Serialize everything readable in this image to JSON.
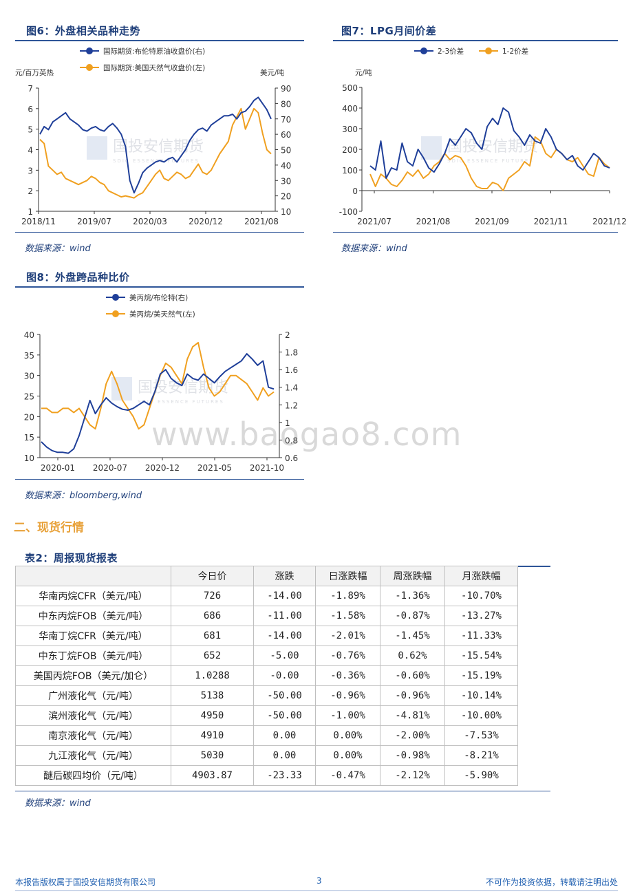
{
  "fig6": {
    "title": "图6：外盘相关品种走势",
    "source": "数据来源：wind",
    "chart_data": {
      "type": "line",
      "title": "图6：外盘相关品种走势",
      "left_unit": "元/百万英热",
      "right_unit": "美元/吨",
      "left_ticks": [
        "1",
        "2",
        "3",
        "4",
        "5",
        "6",
        "7"
      ],
      "right_ticks": [
        "10",
        "20",
        "30",
        "40",
        "50",
        "60",
        "70",
        "80",
        "90"
      ],
      "x_ticks": [
        "2018/11",
        "2019/07",
        "2020/03",
        "2020/12",
        "2021/08"
      ],
      "ylim_left": [
        1,
        7
      ],
      "ylim_right": [
        10,
        90
      ],
      "series": [
        {
          "name": "国际期货:布伦特原油收盘价(右)",
          "axis": "right",
          "color": "#1f3f99",
          "values": [
            60,
            65,
            63,
            68,
            70,
            72,
            74,
            70,
            68,
            66,
            63,
            62,
            64,
            65,
            63,
            62,
            65,
            67,
            64,
            60,
            52,
            30,
            22,
            28,
            35,
            38,
            40,
            42,
            43,
            42,
            44,
            45,
            42,
            46,
            50,
            56,
            60,
            63,
            64,
            62,
            66,
            68,
            70,
            72,
            72,
            73,
            70,
            74,
            75,
            78,
            82,
            84,
            80,
            76,
            70
          ]
        },
        {
          "name": "国际期货:美国天然气收盘价(左)",
          "axis": "left",
          "color": "#f0a020",
          "values": [
            4.5,
            4.3,
            3.2,
            3.0,
            2.8,
            2.9,
            2.6,
            2.5,
            2.4,
            2.3,
            2.4,
            2.5,
            2.7,
            2.6,
            2.4,
            2.3,
            2.0,
            1.9,
            1.8,
            1.7,
            1.75,
            1.7,
            1.65,
            1.8,
            1.9,
            2.2,
            2.5,
            2.8,
            3.0,
            2.6,
            2.5,
            2.7,
            2.9,
            2.8,
            2.6,
            2.7,
            3.0,
            3.3,
            2.9,
            2.8,
            3.0,
            3.4,
            3.8,
            4.1,
            4.4,
            5.2,
            5.6,
            6.0,
            5.0,
            5.5,
            6.0,
            5.8,
            4.8,
            4.0,
            3.8
          ]
        }
      ]
    }
  },
  "fig7": {
    "title": "图7：LPG月间价差",
    "source": "数据来源：wind",
    "chart_data": {
      "type": "line",
      "title": "图7：LPG月间价差",
      "y_unit": "元/吨",
      "y_ticks": [
        "-100",
        "0",
        "100",
        "200",
        "300",
        "400",
        "500"
      ],
      "x_ticks": [
        "2021/07",
        "2021/08",
        "2021/09",
        "2021/11",
        "2021/12"
      ],
      "ylim": [
        -100,
        500
      ],
      "series": [
        {
          "name": "2-3价差",
          "color": "#1f3f99",
          "values": [
            120,
            100,
            240,
            60,
            110,
            100,
            230,
            140,
            120,
            200,
            160,
            110,
            90,
            130,
            180,
            250,
            220,
            260,
            300,
            280,
            230,
            200,
            310,
            350,
            320,
            400,
            380,
            290,
            260,
            220,
            270,
            240,
            230,
            300,
            260,
            200,
            180,
            150,
            170,
            120,
            100,
            140,
            180,
            160,
            120,
            110
          ]
        },
        {
          "name": "1-2价差",
          "color": "#f0a020",
          "values": [
            80,
            20,
            80,
            60,
            30,
            20,
            50,
            90,
            70,
            100,
            60,
            80,
            120,
            140,
            180,
            150,
            170,
            160,
            120,
            60,
            20,
            10,
            10,
            40,
            30,
            0,
            60,
            80,
            100,
            140,
            120,
            260,
            240,
            180,
            160,
            200,
            180,
            150,
            140,
            160,
            120,
            80,
            70,
            160,
            130,
            110
          ]
        }
      ]
    }
  },
  "fig8": {
    "title": "图8：外盘跨品种比价",
    "source": "数据来源：bloomberg,wind",
    "chart_data": {
      "type": "line",
      "title": "图8：外盘跨品种比价",
      "left_ticks": [
        "10",
        "15",
        "20",
        "25",
        "30",
        "35",
        "40"
      ],
      "right_ticks": [
        "0.6",
        "0.8",
        "1",
        "1.2",
        "1.4",
        "1.6",
        "1.8",
        "2"
      ],
      "x_ticks": [
        "2020-01",
        "2020-07",
        "2020-12",
        "2021-05",
        "2021-10"
      ],
      "ylim_left": [
        10,
        40
      ],
      "ylim_right": [
        0.6,
        2.0
      ],
      "series": [
        {
          "name": "美丙烷/布伦特(右)",
          "axis": "right",
          "color": "#1f3f99",
          "values": [
            0.78,
            0.72,
            0.68,
            0.66,
            0.66,
            0.65,
            0.7,
            0.85,
            1.05,
            1.25,
            1.1,
            1.2,
            1.28,
            1.22,
            1.18,
            1.15,
            1.14,
            1.16,
            1.2,
            1.24,
            1.2,
            1.35,
            1.55,
            1.6,
            1.5,
            1.45,
            1.42,
            1.55,
            1.5,
            1.48,
            1.55,
            1.5,
            1.45,
            1.52,
            1.58,
            1.62,
            1.66,
            1.7,
            1.78,
            1.72,
            1.65,
            1.7,
            1.4,
            1.38
          ]
        },
        {
          "name": "美丙烷/美天然气(左)",
          "axis": "left",
          "color": "#f0a020",
          "values": [
            22,
            22,
            21,
            21,
            22,
            22,
            21,
            22,
            20,
            18,
            17,
            22,
            28,
            31,
            28,
            24,
            22,
            20,
            17,
            18,
            22,
            26,
            30,
            33,
            32,
            30,
            28,
            34,
            37,
            38,
            32,
            27,
            25,
            26,
            28,
            30,
            30,
            29,
            28,
            26,
            24,
            27,
            25,
            26
          ]
        }
      ]
    }
  },
  "watermark": {
    "company_cn": "国投安信期货",
    "company_en": "SDIC ESSENCE FUTURES",
    "site": "www.baogao8.com"
  },
  "section": {
    "title": "二、现货行情"
  },
  "table": {
    "title": "表2：周报现货报表",
    "source": "数据来源：wind",
    "headers": [
      "",
      "今日价",
      "涨跌",
      "日涨跌幅",
      "周涨跌幅",
      "月涨跌幅"
    ],
    "rows": [
      [
        "华南丙烷CFR（美元/吨）",
        "726",
        "-14.00",
        "-1.89%",
        "-1.36%",
        "-10.70%"
      ],
      [
        "中东丙烷FOB（美元/吨）",
        "686",
        "-11.00",
        "-1.58%",
        "-0.87%",
        "-13.27%"
      ],
      [
        "华南丁烷CFR（美元/吨）",
        "681",
        "-14.00",
        "-2.01%",
        "-1.45%",
        "-11.33%"
      ],
      [
        "中东丁烷FOB（美元/吨）",
        "652",
        "-5.00",
        "-0.76%",
        "0.62%",
        "-15.54%"
      ],
      [
        "美国丙烷FOB（美元/加仑）",
        "1.0288",
        "-0.00",
        "-0.36%",
        "-0.60%",
        "-15.19%"
      ],
      [
        "广州液化气（元/吨）",
        "5138",
        "-50.00",
        "-0.96%",
        "-0.96%",
        "-10.14%"
      ],
      [
        "滨州液化气（元/吨）",
        "4950",
        "-50.00",
        "-1.00%",
        "-4.81%",
        "-10.00%"
      ],
      [
        "南京液化气（元/吨）",
        "4910",
        "0.00",
        "0.00%",
        "-2.00%",
        "-7.53%"
      ],
      [
        "九江液化气（元/吨）",
        "5030",
        "0.00",
        "0.00%",
        "-0.98%",
        "-8.21%"
      ],
      [
        "醚后碳四均价（元/吨）",
        "4903.87",
        "-23.33",
        "-0.47%",
        "-2.12%",
        "-5.90%"
      ]
    ]
  },
  "footer": {
    "left": "本报告版权属于国投安信期货有限公司",
    "page": "3",
    "right": "不可作为投资依据，转载请注明出处"
  }
}
